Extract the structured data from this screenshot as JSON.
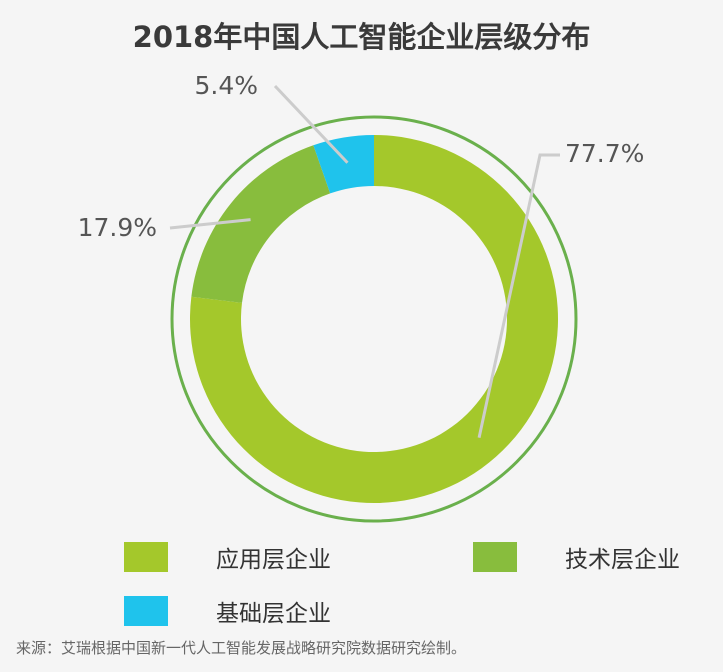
{
  "chart_data": {
    "type": "pie",
    "title": "2018年中国人工智能企业层级分布",
    "variant": "donut",
    "slices": [
      {
        "name": "应用层企业",
        "value": 77.7,
        "label": "77.7%",
        "color": "#a4c82b"
      },
      {
        "name": "技术层企业",
        "value": 17.9,
        "label": "17.9%",
        "color": "#88bd3d"
      },
      {
        "name": "基础层企业",
        "value": 5.4,
        "label": "5.4%",
        "color": "#1fc3ec"
      }
    ],
    "legend": [
      "应用层企业",
      "技术层企业",
      "基础层企业"
    ],
    "legend_position": "bottom",
    "outer_ring_color": "#6ab04c",
    "leader_line_color": "#cccccc"
  },
  "source": "来源：艾瑞根据中国新一代人工智能发展战略研究院数据研究绘制。"
}
